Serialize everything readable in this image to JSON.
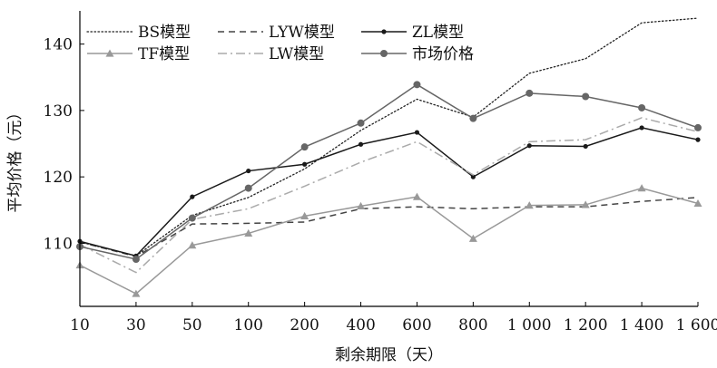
{
  "chart_data": {
    "type": "line",
    "xlabel": "剩余期限（天）",
    "ylabel": "平均价格（元）",
    "categories": [
      "10",
      "30",
      "50",
      "100",
      "200",
      "400",
      "600",
      "800",
      "1 000",
      "1 200",
      "1 400",
      "1 600"
    ],
    "yticks": [
      110,
      120,
      130,
      140
    ],
    "ylim": [
      100.5,
      145
    ],
    "grid": false,
    "legend_position": "top-left",
    "series": [
      {
        "name": "BS模型",
        "style": "dotted",
        "color": "#222222",
        "marker": "none",
        "values": [
          110.2,
          108.1,
          114.2,
          116.9,
          121.2,
          127.0,
          131.7,
          129.0,
          135.6,
          137.8,
          143.2,
          143.9
        ]
      },
      {
        "name": "LYW模型",
        "style": "dashed",
        "color": "#444444",
        "marker": "none",
        "values": [
          110.2,
          108.0,
          112.9,
          113.0,
          113.2,
          115.2,
          115.5,
          115.2,
          115.5,
          115.5,
          116.3,
          116.9
        ]
      },
      {
        "name": "ZL模型",
        "style": "solid",
        "color": "#1a1a1a",
        "marker": "dot",
        "values": [
          110.3,
          108.1,
          117.0,
          120.9,
          121.9,
          124.9,
          126.7,
          120.0,
          124.7,
          124.6,
          127.4,
          125.6
        ]
      },
      {
        "name": "TF模型",
        "style": "solid",
        "color": "#999999",
        "marker": "triangle",
        "values": [
          106.7,
          102.4,
          109.7,
          111.5,
          114.1,
          115.6,
          117.0,
          110.7,
          115.7,
          115.8,
          118.3,
          116.0
        ]
      },
      {
        "name": "LW模型",
        "style": "dashdot",
        "color": "#aaaaaa",
        "marker": "none",
        "values": [
          109.8,
          105.6,
          113.6,
          115.2,
          118.6,
          122.2,
          125.3,
          120.3,
          125.3,
          125.6,
          128.9,
          126.8
        ]
      },
      {
        "name": "市场价格",
        "style": "solid",
        "color": "#666666",
        "marker": "circle",
        "values": [
          109.5,
          107.6,
          113.8,
          118.3,
          124.5,
          128.1,
          133.9,
          128.8,
          132.6,
          132.1,
          130.4,
          127.4
        ]
      }
    ]
  }
}
